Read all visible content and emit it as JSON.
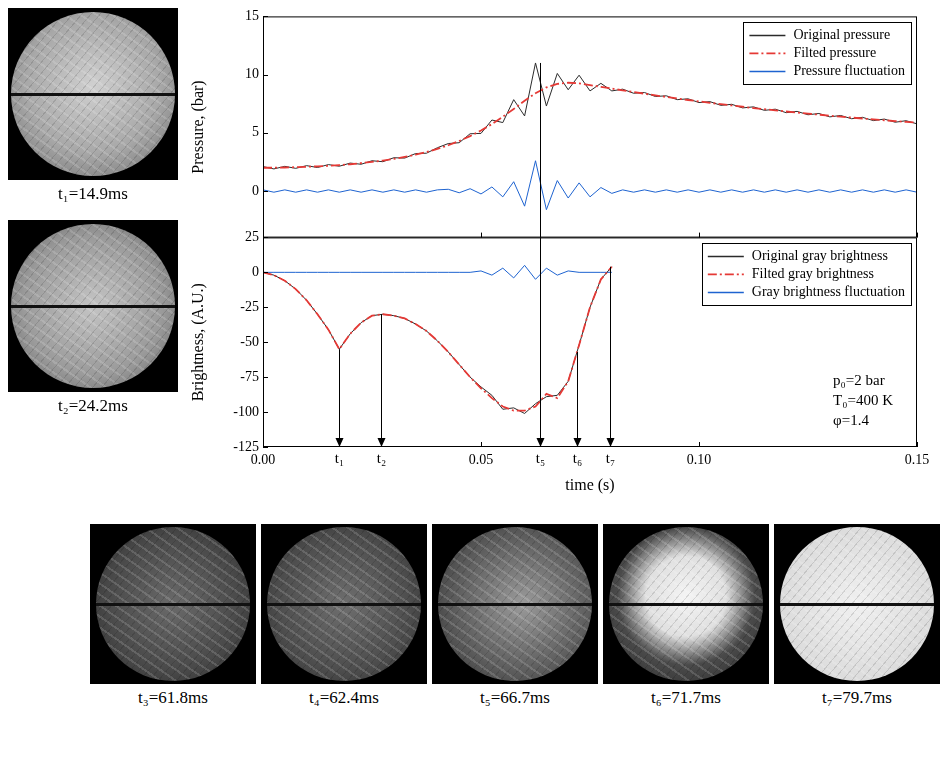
{
  "chart_data": [
    {
      "type": "line",
      "y_label": "Pressure, (bar)",
      "x": [
        0,
        0.0025,
        0.005,
        0.0075,
        0.01,
        0.0125,
        0.015,
        0.0175,
        0.02,
        0.0225,
        0.025,
        0.0275,
        0.03,
        0.0325,
        0.035,
        0.0375,
        0.04,
        0.0425,
        0.045,
        0.0475,
        0.05,
        0.0525,
        0.055,
        0.0575,
        0.06,
        0.0625,
        0.065,
        0.0675,
        0.07,
        0.0725,
        0.075,
        0.0775,
        0.08,
        0.0825,
        0.085,
        0.0875,
        0.09,
        0.0925,
        0.095,
        0.0975,
        0.1,
        0.1025,
        0.105,
        0.1075,
        0.11,
        0.1125,
        0.115,
        0.1175,
        0.12,
        0.1225,
        0.125,
        0.1275,
        0.13,
        0.1325,
        0.135,
        0.1375,
        0.14,
        0.1425,
        0.145,
        0.1475,
        0.15
      ],
      "series": [
        {
          "name": "Original pressure",
          "color": "#2b2b2b",
          "line_style": "solid",
          "values": [
            2.1,
            1.9,
            2.12,
            1.95,
            2.18,
            2.02,
            2.27,
            2.13,
            2.4,
            2.3,
            2.6,
            2.52,
            2.86,
            2.83,
            3.22,
            3.25,
            3.72,
            4.08,
            4.15,
            4.92,
            4.95,
            6.1,
            5.88,
            7.85,
            6.45,
            11.0,
            7.3,
            10.1,
            8.7,
            9.95,
            8.6,
            9.25,
            8.6,
            8.75,
            8.4,
            8.46,
            8.12,
            8.18,
            7.85,
            7.92,
            7.6,
            7.68,
            7.36,
            7.45,
            7.14,
            7.23,
            6.93,
            7.03,
            6.73,
            6.84,
            6.55,
            6.66,
            6.37,
            6.49,
            6.21,
            6.33,
            6.05,
            6.18,
            5.91,
            6.04,
            5.77
          ]
        },
        {
          "name": "Filted pressure",
          "color": "#e53935",
          "line_style": "dashdot",
          "values": [
            2.0,
            2.0,
            2.02,
            2.05,
            2.08,
            2.12,
            2.17,
            2.23,
            2.3,
            2.4,
            2.5,
            2.62,
            2.76,
            2.93,
            3.12,
            3.35,
            3.62,
            3.93,
            4.3,
            4.72,
            5.2,
            5.75,
            6.38,
            7.05,
            7.75,
            8.4,
            8.9,
            9.2,
            9.3,
            9.25,
            9.1,
            8.95,
            8.8,
            8.65,
            8.5,
            8.36,
            8.22,
            8.08,
            7.95,
            7.82,
            7.7,
            7.58,
            7.46,
            7.35,
            7.24,
            7.13,
            7.03,
            6.93,
            6.83,
            6.74,
            6.65,
            6.56,
            6.47,
            6.39,
            6.31,
            6.23,
            6.15,
            6.08,
            6.01,
            5.94,
            5.87
          ]
        },
        {
          "name": "Pressure fluctuation",
          "color": "#1e63d0",
          "line_style": "solid",
          "values": [
            0.1,
            -0.1,
            0.1,
            -0.1,
            0.1,
            -0.1,
            0.1,
            -0.1,
            0.1,
            -0.1,
            0.1,
            -0.1,
            0.1,
            -0.1,
            0.1,
            -0.1,
            0.1,
            0.15,
            -0.15,
            0.2,
            -0.25,
            0.35,
            -0.5,
            0.8,
            -1.3,
            2.6,
            -1.6,
            0.9,
            -0.6,
            0.7,
            -0.5,
            0.3,
            -0.2,
            0.1,
            -0.1,
            0.1,
            -0.1,
            0.1,
            -0.1,
            0.1,
            -0.1,
            0.1,
            -0.1,
            0.1,
            -0.1,
            0.1,
            -0.1,
            0.1,
            -0.1,
            0.1,
            -0.1,
            0.1,
            -0.1,
            0.1,
            -0.1,
            0.1,
            -0.1,
            0.1,
            -0.1,
            0.1,
            -0.1
          ]
        }
      ],
      "xlim": [
        0,
        0.15
      ],
      "xticks": [
        {
          "value": 0,
          "label": "0.00"
        },
        0.05,
        {
          "value": 0.1,
          "label": "0.10"
        },
        {
          "value": 0.15,
          "label": "0.15"
        }
      ],
      "ylim": [
        -4,
        15
      ],
      "yticks": [
        0,
        5,
        10,
        15
      ],
      "tick_labels": "y",
      "grid": false,
      "legend": "upper right",
      "markers": [
        {
          "x": 0.0635,
          "y": 11.0
        }
      ]
    },
    {
      "type": "line",
      "x_label": "time (s)",
      "y_label": "Brightness, (A.U.)",
      "x": [
        0,
        0.0025,
        0.005,
        0.0075,
        0.01,
        0.0125,
        0.015,
        0.0175,
        0.02,
        0.0225,
        0.025,
        0.0275,
        0.03,
        0.0325,
        0.035,
        0.0375,
        0.04,
        0.0425,
        0.045,
        0.0475,
        0.05,
        0.0525,
        0.055,
        0.0575,
        0.06,
        0.0625,
        0.065,
        0.0675,
        0.07,
        0.0725,
        0.075,
        0.0775,
        0.08,
        0.0825,
        0.085,
        0.0875,
        0.09,
        0.0925,
        0.095,
        0.0975,
        0.1,
        0.1025,
        0.105,
        0.1075,
        0.11,
        0.1125,
        0.115,
        0.1175,
        0.12,
        0.1225,
        0.125,
        0.1275,
        0.13,
        0.1325,
        0.135,
        0.1375,
        0.14,
        0.1425,
        0.145,
        0.1475,
        0.15
      ],
      "series": [
        {
          "name": "Original gray brightness",
          "color": "#2b2b2b",
          "line_style": "solid",
          "values": [
            0,
            -2,
            -6,
            -12,
            -20,
            -30,
            -41,
            -55,
            -44,
            -36,
            -31,
            -30,
            -31,
            -33,
            -37,
            -42,
            -49,
            -57,
            -66,
            -75,
            -82,
            -88,
            -98,
            -97,
            -101,
            -94,
            -89,
            -88,
            -78,
            -52,
            -25,
            -5,
            4,
            null,
            null,
            null,
            null,
            null,
            null,
            null,
            null,
            null,
            null,
            null,
            null,
            null,
            null,
            null,
            null,
            null,
            null,
            null,
            null,
            null,
            null,
            null,
            null,
            null,
            null,
            null,
            null
          ]
        },
        {
          "name": "Filted gray brightness",
          "color": "#e53935",
          "line_style": "dashdot",
          "values": [
            0,
            -2,
            -6,
            -12,
            -20,
            -30,
            -41,
            -55,
            -44,
            -36,
            -31,
            -30,
            -31,
            -33,
            -37,
            -42,
            -49,
            -57,
            -66,
            -75,
            -83,
            -90,
            -96,
            -99,
            -99,
            -96,
            -87,
            -90,
            -78,
            -52,
            -25,
            -5,
            4,
            null,
            null,
            null,
            null,
            null,
            null,
            null,
            null,
            null,
            null,
            null,
            null,
            null,
            null,
            null,
            null,
            null,
            null,
            null,
            null,
            null,
            null,
            null,
            null,
            null,
            null,
            null,
            null
          ]
        },
        {
          "name": "Gray brightness fluctuation",
          "color": "#1e63d0",
          "line_style": "solid",
          "values": [
            0,
            0,
            0,
            0,
            0,
            0,
            0,
            0,
            0,
            0,
            0,
            0,
            0,
            0,
            0,
            0,
            0,
            0,
            0,
            0,
            1,
            -2,
            3,
            -4,
            5,
            -5,
            3,
            -2,
            1,
            0,
            0,
            0,
            0,
            null,
            null,
            null,
            null,
            null,
            null,
            null,
            null,
            null,
            null,
            null,
            null,
            null,
            null,
            null,
            null,
            null,
            null,
            null,
            null,
            null,
            null,
            null,
            null,
            null,
            null,
            null,
            null
          ]
        }
      ],
      "xlim": [
        0,
        0.15
      ],
      "xticks": [
        {
          "value": 0,
          "label": "0.00"
        },
        0.05,
        {
          "value": 0.1,
          "label": "0.10"
        },
        {
          "value": 0.15,
          "label": "0.15"
        }
      ],
      "ylim": [
        -125,
        25
      ],
      "yticks": [
        -125,
        -100,
        -75,
        -50,
        -25,
        0,
        25
      ],
      "grid": false,
      "legend": "upper right",
      "markers": [
        {
          "label": "t₁",
          "x": 0.0175,
          "y": -55
        },
        {
          "label": "t₂",
          "x": 0.027,
          "y": -30
        },
        {
          "label": "t₅",
          "x": 0.0635,
          "y": 25
        },
        {
          "label": "t₆",
          "x": 0.072,
          "y": -57
        },
        {
          "label": "t₇",
          "x": 0.0797,
          "y": 4
        }
      ],
      "annotation": [
        "p₀=2 bar",
        "T₀=400 K",
        "φ=1.4"
      ]
    }
  ],
  "images": {
    "left": [
      "t₁=14.9ms",
      "t₂=24.2ms"
    ],
    "bottom": [
      "t₃=61.8ms",
      "t₄=62.4ms",
      "t₅=66.7ms",
      "t₆=71.7ms",
      "t₇=79.7ms"
    ]
  }
}
